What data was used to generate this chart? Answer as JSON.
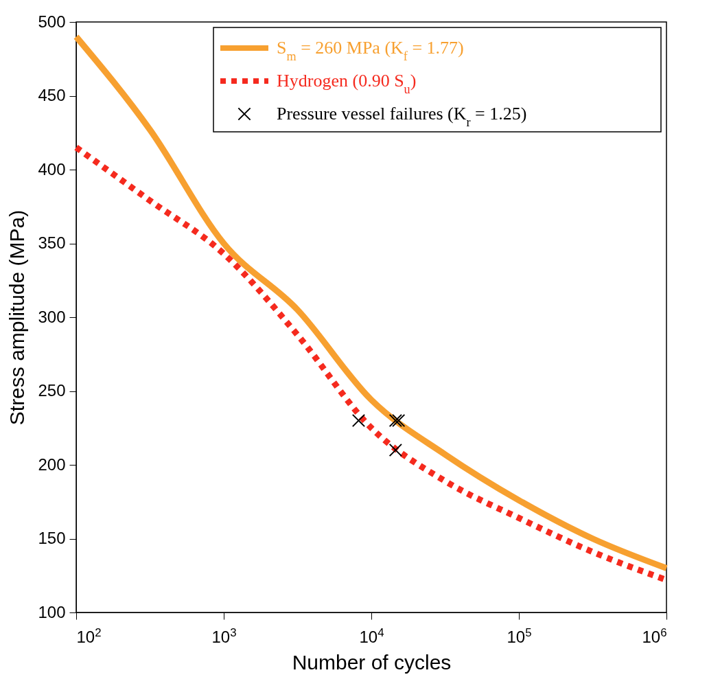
{
  "chart_data": {
    "type": "line",
    "xlabel": "Number of cycles",
    "ylabel": "Stress amplitude (MPa)",
    "log": "x",
    "xlim": [
      100,
      1000000
    ],
    "ylim": [
      100,
      500
    ],
    "xticks": [
      {
        "value": 100,
        "label": "10$^{2}$"
      },
      {
        "value": 1000,
        "label": "10$^{3}$"
      },
      {
        "value": 10000,
        "label": "10$^{4}$"
      },
      {
        "value": 100000,
        "label": "10$^{5}$"
      },
      {
        "value": 1000000,
        "label": "10$^{6}$"
      }
    ],
    "yticks": [
      100,
      150,
      200,
      250,
      300,
      350,
      400,
      450,
      500
    ],
    "grid": false,
    "legend": "top right",
    "series": [
      {
        "name": "S$_{m}$ = 260 MPa (K$_{f}$ = 1.77)",
        "type": "line",
        "color": "#f7a030",
        "line_style": "solid",
        "x": [
          100,
          316,
          1000,
          3162,
          10000,
          31623,
          100000,
          316228,
          1000000
        ],
        "values": [
          490,
          427,
          350,
          305,
          244,
          207,
          176,
          150,
          130
        ]
      },
      {
        "name": "Hydrogen (0.90 S$_{u}$)",
        "type": "line",
        "color": "#f52a1e",
        "line_style": "dotted",
        "x": [
          100,
          316,
          1000,
          3162,
          10000,
          31623,
          100000,
          316228,
          1000000
        ],
        "values": [
          415,
          379,
          343,
          288,
          225,
          189,
          164,
          141,
          122
        ]
      },
      {
        "name": "Pressure vessel failures (K$_{r}$ = 1.25)",
        "type": "scatter",
        "color": "#000000",
        "marker": "cross",
        "x": [
          8200,
          14600,
          15300,
          14600
        ],
        "values": [
          230,
          230,
          230,
          210
        ]
      }
    ]
  }
}
